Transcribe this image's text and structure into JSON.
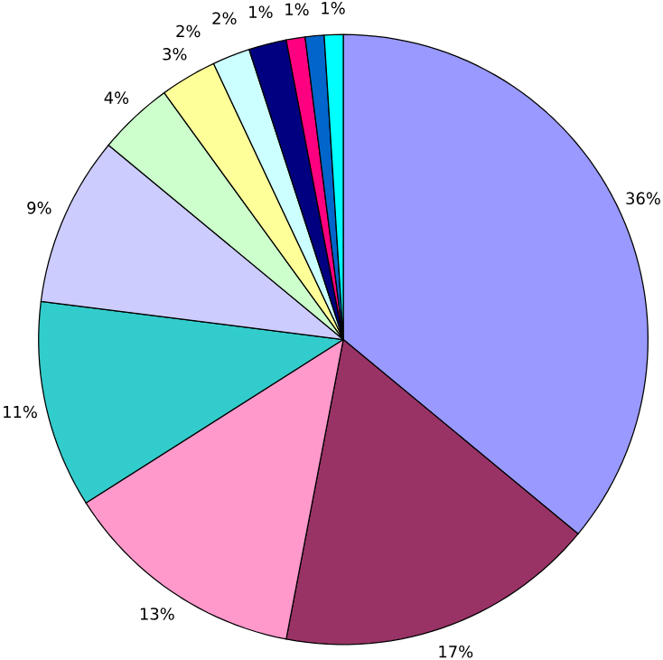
{
  "chart_data": {
    "type": "pie",
    "categories": [
      null,
      null,
      null,
      null,
      null,
      null,
      null,
      null,
      null,
      null,
      null,
      null
    ],
    "values": [
      36,
      17,
      13,
      11,
      9,
      4,
      3,
      2,
      2,
      1,
      1,
      1
    ],
    "value_labels": [
      "36%",
      "17%",
      "13%",
      "11%",
      "9%",
      "4%",
      "3%",
      "2%",
      "2%",
      "1%",
      "1%",
      "1%"
    ],
    "colors": [
      "#9999ff",
      "#993366",
      "#ff99cc",
      "#33cccc",
      "#ccccff",
      "#ccffcc",
      "#ffff99",
      "#ccffff",
      "#000080",
      "#ff0080",
      "#0066cc",
      "#00ffff"
    ]
  }
}
